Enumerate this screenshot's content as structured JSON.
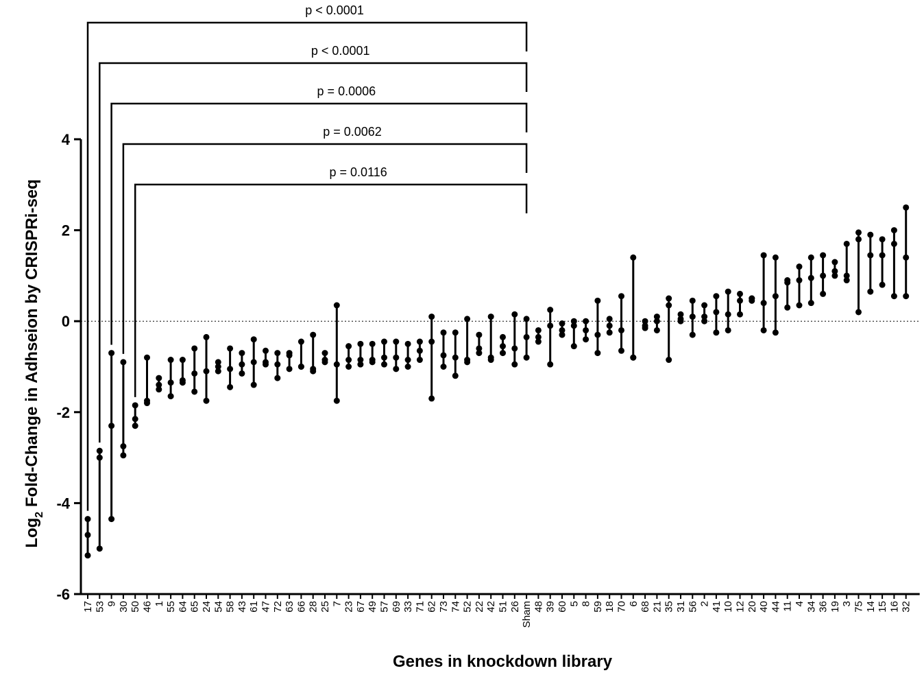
{
  "chart_data": {
    "type": "dot-range",
    "title": "",
    "ylabel": {
      "base": "Log",
      "sub": "2",
      "rest": " Fold-Change in Adhseion by CRISPRi-seq"
    },
    "xlabel": "Genes in knockdown library",
    "ylim": [
      -6,
      4
    ],
    "yticks": [
      -6,
      -4,
      -2,
      0,
      2,
      4
    ],
    "reference_line": {
      "y": 0,
      "style": "dotted"
    },
    "categories": [
      "17",
      "53",
      "9",
      "30",
      "50",
      "46",
      "1",
      "55",
      "64",
      "65",
      "24",
      "54",
      "58",
      "43",
      "61",
      "47",
      "72",
      "63",
      "66",
      "28",
      "25",
      "7",
      "23",
      "67",
      "49",
      "57",
      "69",
      "33",
      "71",
      "62",
      "73",
      "74",
      "52",
      "22",
      "42",
      "51",
      "26",
      "Sham",
      "48",
      "39",
      "60",
      "5",
      "8",
      "59",
      "18",
      "70",
      "6",
      "68",
      "21",
      "35",
      "31",
      "56",
      "2",
      "41",
      "10",
      "12",
      "20",
      "40",
      "44",
      "11",
      "4",
      "34",
      "36",
      "19",
      "3",
      "75",
      "14",
      "15",
      "16",
      "32"
    ],
    "series": [
      {
        "values": [
          [
            -5.15,
            -4.7,
            -4.35
          ],
          [
            -5.0,
            -3.0,
            -2.85
          ],
          [
            -4.35,
            -2.3,
            -0.7
          ],
          [
            -2.95,
            -2.75,
            -0.9
          ],
          [
            -2.3,
            -2.15,
            -1.85
          ],
          [
            -1.8,
            -1.75,
            -0.8
          ],
          [
            -1.5,
            -1.4,
            -1.25
          ],
          [
            -1.65,
            -1.35,
            -0.85
          ],
          [
            -1.35,
            -1.3,
            -0.85
          ],
          [
            -1.55,
            -1.15,
            -0.6
          ],
          [
            -1.75,
            -1.1,
            -0.35
          ],
          [
            -1.1,
            -1.0,
            -0.9
          ],
          [
            -1.45,
            -1.05,
            -0.6
          ],
          [
            -1.15,
            -0.95,
            -0.7
          ],
          [
            -1.4,
            -0.9,
            -0.4
          ],
          [
            -0.95,
            -0.9,
            -0.65
          ],
          [
            -1.25,
            -0.95,
            -0.7
          ],
          [
            -1.05,
            -0.75,
            -0.7
          ],
          [
            -1.0,
            -1.0,
            -0.45
          ],
          [
            -1.1,
            -1.05,
            -0.3
          ],
          [
            -0.9,
            -0.85,
            -0.7
          ],
          [
            -1.75,
            -0.95,
            0.35
          ],
          [
            -1.0,
            -0.85,
            -0.55
          ],
          [
            -0.95,
            -0.85,
            -0.5
          ],
          [
            -0.9,
            -0.85,
            -0.5
          ],
          [
            -0.95,
            -0.8,
            -0.45
          ],
          [
            -1.05,
            -0.8,
            -0.45
          ],
          [
            -1.0,
            -0.85,
            -0.5
          ],
          [
            -0.85,
            -0.65,
            -0.45
          ],
          [
            -1.7,
            -0.45,
            0.1
          ],
          [
            -1.0,
            -0.75,
            -0.25
          ],
          [
            -1.2,
            -0.8,
            -0.25
          ],
          [
            -0.9,
            -0.85,
            0.05
          ],
          [
            -0.7,
            -0.6,
            -0.3
          ],
          [
            -0.85,
            -0.8,
            0.1
          ],
          [
            -0.7,
            -0.55,
            -0.35
          ],
          [
            -0.95,
            -0.6,
            0.15
          ],
          [
            -0.8,
            -0.35,
            0.05
          ],
          [
            -0.45,
            -0.35,
            -0.2
          ],
          [
            -0.95,
            -0.1,
            0.25
          ],
          [
            -0.3,
            -0.2,
            -0.05
          ],
          [
            -0.55,
            -0.1,
            0.0
          ],
          [
            -0.4,
            -0.2,
            0.0
          ],
          [
            -0.7,
            -0.3,
            0.45
          ],
          [
            -0.25,
            -0.1,
            0.05
          ],
          [
            -0.65,
            -0.2,
            0.55
          ],
          [
            -0.8,
            -0.8,
            1.4
          ],
          [
            -0.15,
            -0.1,
            0.0
          ],
          [
            -0.2,
            0.0,
            0.1
          ],
          [
            -0.85,
            0.35,
            0.5
          ],
          [
            0.0,
            0.05,
            0.15
          ],
          [
            -0.3,
            0.1,
            0.45
          ],
          [
            0.0,
            0.1,
            0.35
          ],
          [
            -0.25,
            0.2,
            0.55
          ],
          [
            -0.2,
            0.15,
            0.65
          ],
          [
            0.15,
            0.45,
            0.6
          ],
          [
            0.45,
            0.5,
            0.5
          ],
          [
            -0.2,
            0.4,
            1.45
          ],
          [
            -0.25,
            0.55,
            1.4
          ],
          [
            0.3,
            0.85,
            0.9
          ],
          [
            0.35,
            0.9,
            1.2
          ],
          [
            0.4,
            0.95,
            1.4
          ],
          [
            0.6,
            1.0,
            1.45
          ],
          [
            1.0,
            1.1,
            1.3
          ],
          [
            0.9,
            1.0,
            1.7
          ],
          [
            0.2,
            1.8,
            1.95
          ],
          [
            0.65,
            1.45,
            1.9
          ],
          [
            0.8,
            1.45,
            1.8
          ],
          [
            0.55,
            1.7,
            2.0
          ],
          [
            0.55,
            1.4,
            2.5
          ]
        ]
      }
    ],
    "comparisons": [
      {
        "from": "17",
        "to": "Sham",
        "label": "p < 0.0001"
      },
      {
        "from": "53",
        "to": "Sham",
        "label": "p < 0.0001"
      },
      {
        "from": "9",
        "to": "Sham",
        "label": "p = 0.0006"
      },
      {
        "from": "30",
        "to": "Sham",
        "label": "p = 0.0062"
      },
      {
        "from": "50",
        "to": "Sham",
        "label": "p = 0.0116"
      }
    ],
    "grid": false,
    "legend": "none"
  }
}
